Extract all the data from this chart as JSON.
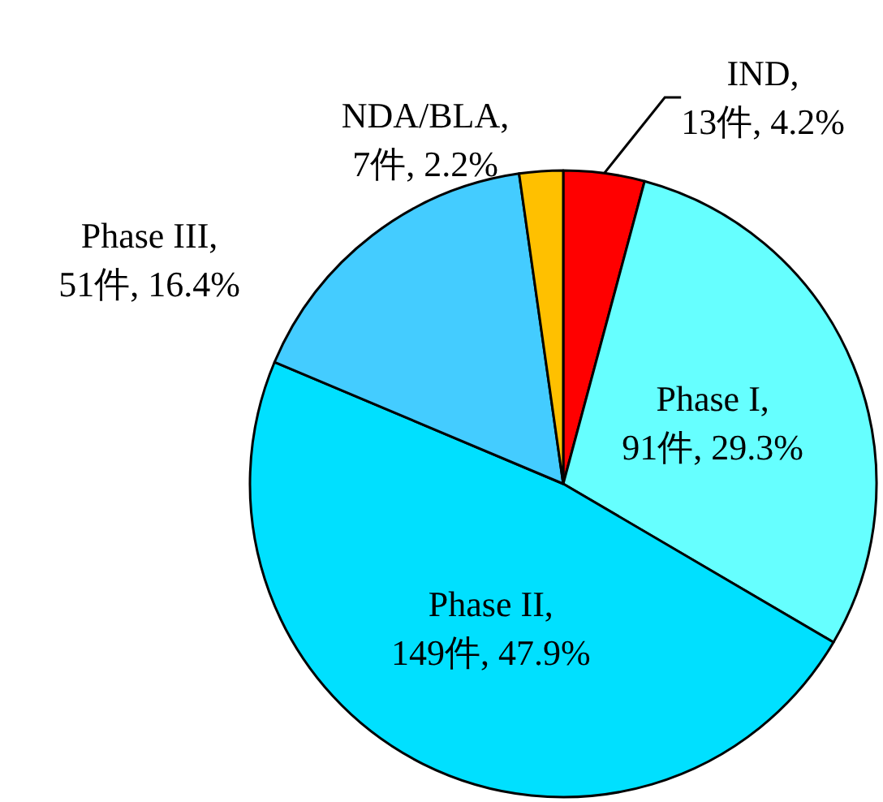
{
  "chart_data": {
    "type": "pie",
    "categories": [
      "IND",
      "Phase I",
      "Phase II",
      "Phase III",
      "NDA/BLA"
    ],
    "values": [
      13,
      91,
      149,
      51,
      7
    ],
    "colors": [
      "#ff0000",
      "#66ffff",
      "#00e0ff",
      "#44ccff",
      "#ffc000"
    ],
    "value_labels": [
      ",\n13件, 4.2%",
      ",\n91件, 29.3%",
      ",\n149件, 47.9%",
      ",\n51件, 16.4%",
      ",\n7件, 2.2%"
    ],
    "legend": false
  }
}
